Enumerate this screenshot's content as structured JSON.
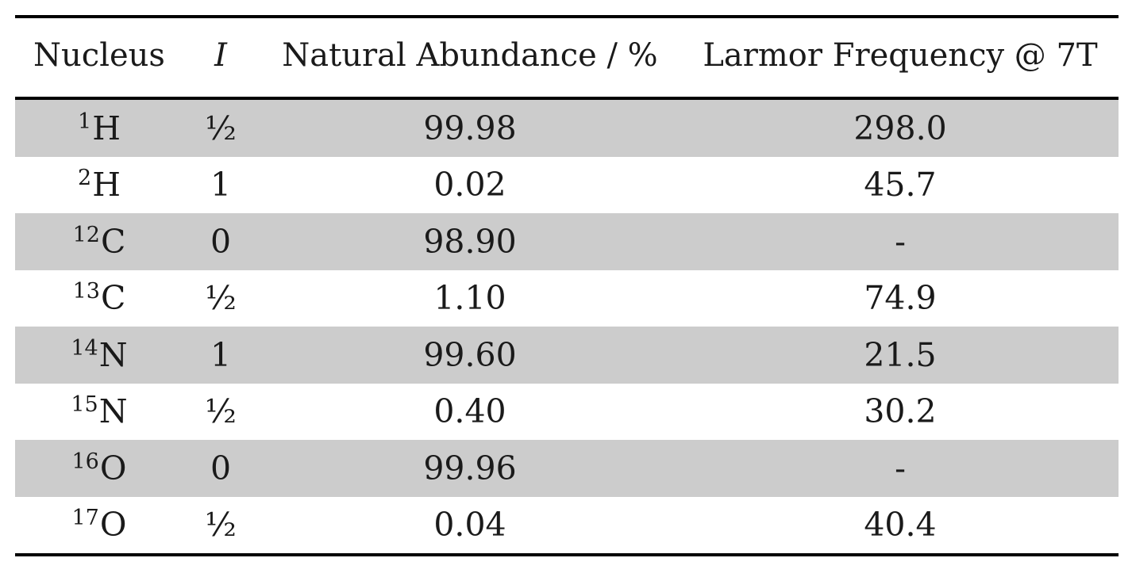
{
  "table": {
    "headers": {
      "nucleus": "Nucleus",
      "spin": "I",
      "abundance": "Natural Abundance / %",
      "larmor": "Larmor Frequency @ 7T"
    },
    "rows": [
      {
        "mass": "1",
        "element": "H",
        "spin": "½",
        "abundance": "99.98",
        "larmor": "298.0",
        "shaded": true
      },
      {
        "mass": "2",
        "element": "H",
        "spin": "1",
        "abundance": "0.02",
        "larmor": "45.7",
        "shaded": false
      },
      {
        "mass": "12",
        "element": "C",
        "spin": "0",
        "abundance": "98.90",
        "larmor": "-",
        "shaded": true
      },
      {
        "mass": "13",
        "element": "C",
        "spin": "½",
        "abundance": "1.10",
        "larmor": "74.9",
        "shaded": false
      },
      {
        "mass": "14",
        "element": "N",
        "spin": "1",
        "abundance": "99.60",
        "larmor": "21.5",
        "shaded": true
      },
      {
        "mass": "15",
        "element": "N",
        "spin": "½",
        "abundance": "0.40",
        "larmor": "30.2",
        "shaded": false
      },
      {
        "mass": "16",
        "element": "O",
        "spin": "0",
        "abundance": "99.96",
        "larmor": "-",
        "shaded": true
      },
      {
        "mass": "17",
        "element": "O",
        "spin": "½",
        "abundance": "0.04",
        "larmor": "40.4",
        "shaded": false
      }
    ]
  }
}
